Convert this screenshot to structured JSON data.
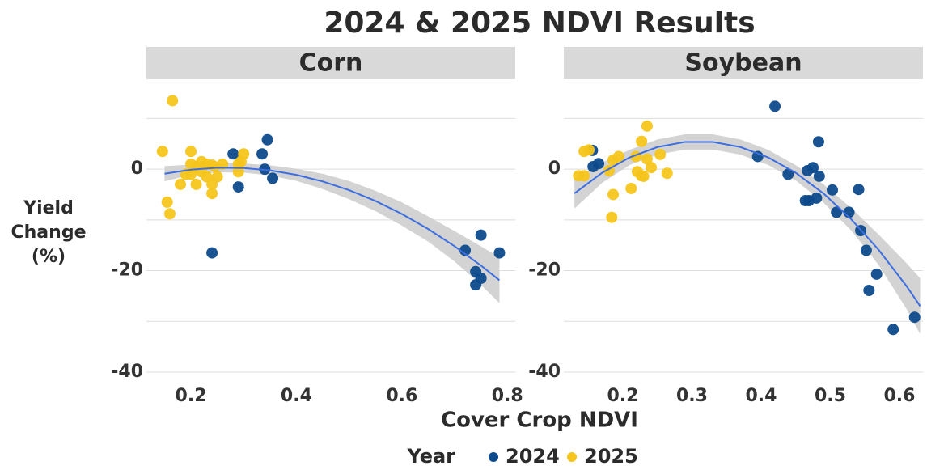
{
  "title": "2024 & 2025 NDVI Results",
  "x_label": "Cover Crop NDVI",
  "y_label": "Yield Change (%)",
  "legend_title": "Year",
  "chart_data": [
    {
      "type": "scatter",
      "title": "Corn",
      "xlim": [
        0.1156,
        0.815
      ],
      "xticks": [
        0.2,
        0.4,
        0.6,
        0.8
      ],
      "ylim": [
        -41.6,
        17.4
      ],
      "yticks": [
        -40,
        -20,
        0
      ],
      "minor_yticks": [
        -30,
        -10,
        10
      ],
      "grid": true,
      "series": [
        {
          "name": "2024",
          "color": "#0d4a8c",
          "x": [
            0.28,
            0.29,
            0.24,
            0.335,
            0.34,
            0.345,
            0.355,
            0.72,
            0.74,
            0.74,
            0.75,
            0.75,
            0.785
          ],
          "values": [
            3,
            -3.5,
            -16.5,
            3,
            0,
            5.8,
            -1.8,
            -16,
            -20.2,
            -22.8,
            -21.5,
            -13,
            -16.5
          ]
        },
        {
          "name": "2025",
          "color": "#f5c51c",
          "x": [
            0.146,
            0.165,
            0.155,
            0.16,
            0.18,
            0.19,
            0.2,
            0.2,
            0.2,
            0.21,
            0.21,
            0.22,
            0.22,
            0.23,
            0.23,
            0.24,
            0.24,
            0.245,
            0.25,
            0.26,
            0.29,
            0.29,
            0.3,
            0.295,
            0.24
          ],
          "values": [
            3.5,
            13.5,
            -6.5,
            -8.8,
            -3,
            -1,
            3.5,
            1,
            -1,
            -3,
            0.5,
            1.5,
            -0.5,
            -1.5,
            1,
            -3,
            -4.8,
            0.5,
            -1.5,
            1,
            1,
            -0.5,
            3,
            1.5,
            0.8
          ]
        }
      ],
      "trend": {
        "color": "#3d6ee0",
        "x": [
          0.15,
          0.2,
          0.25,
          0.3,
          0.35,
          0.4,
          0.45,
          0.5,
          0.55,
          0.6,
          0.65,
          0.7,
          0.75,
          0.785
        ],
        "y": [
          -0.9,
          -0.1,
          0.27,
          0.22,
          -0.24,
          -1.12,
          -2.42,
          -4.13,
          -6.27,
          -8.83,
          -11.8,
          -15.2,
          -19.0,
          -21.9
        ],
        "lower": [
          -2.4,
          -1.1,
          -0.63,
          -0.68,
          -1.24,
          -2.32,
          -3.92,
          -5.93,
          -8.27,
          -11.13,
          -14.3,
          -18.2,
          -22.8,
          -26.4
        ],
        "upper": [
          0.6,
          0.9,
          1.17,
          1.12,
          0.76,
          0.08,
          -0.92,
          -2.33,
          -4.27,
          -6.53,
          -9.3,
          -12.2,
          -15.2,
          -17.4
        ]
      }
    },
    {
      "type": "scatter",
      "title": "Soybean",
      "xlim": [
        0.1146,
        0.634
      ],
      "xticks": [
        0.2,
        0.3,
        0.4,
        0.5,
        0.6
      ],
      "ylim": [
        -41.6,
        17.4
      ],
      "yticks": [
        -40,
        -20,
        0
      ],
      "minor_yticks": [
        -30,
        -10,
        10
      ],
      "grid": true,
      "series": [
        {
          "name": "2024",
          "color": "#0d4a8c",
          "x": [
            0.156,
            0.157,
            0.165,
            0.395,
            0.42,
            0.439,
            0.467,
            0.475,
            0.464,
            0.469,
            0.48,
            0.483,
            0.484,
            0.503,
            0.509,
            0.527,
            0.541,
            0.544,
            0.552,
            0.556,
            0.567,
            0.591,
            0.622
          ],
          "values": [
            3.7,
            0.5,
            1.1,
            2.5,
            12.4,
            -1,
            -0.3,
            0.3,
            -6.2,
            -6.2,
            -5.7,
            5.4,
            -1.4,
            -4.1,
            -8.5,
            -8.5,
            -4,
            -12.1,
            -16,
            -23.9,
            -20.7,
            -31.6,
            -29.2
          ]
        },
        {
          "name": "2025",
          "color": "#f5c51c",
          "x": [
            0.136,
            0.144,
            0.151,
            0.144,
            0.18,
            0.186,
            0.184,
            0.194,
            0.186,
            0.212,
            0.227,
            0.235,
            0.221,
            0.227,
            0.23,
            0.235,
            0.241,
            0.254,
            0.264,
            0.219
          ],
          "values": [
            -1.3,
            3.5,
            3.8,
            -1.3,
            -0.3,
            -5,
            -9.5,
            2.5,
            1.8,
            -3.8,
            5.5,
            8.5,
            -0.5,
            -1.3,
            -1.4,
            2,
            0.3,
            2.9,
            -0.8,
            2.5
          ]
        }
      ],
      "trend": {
        "color": "#3d6ee0",
        "x": [
          0.13,
          0.17,
          0.21,
          0.25,
          0.29,
          0.33,
          0.37,
          0.41,
          0.45,
          0.49,
          0.53,
          0.57,
          0.61,
          0.63
        ],
        "y": [
          -4.77,
          -0.71,
          2.33,
          4.36,
          5.37,
          5.37,
          4.36,
          2.33,
          -0.71,
          -4.77,
          -9.84,
          -15.9,
          -23.0,
          -27.0
        ],
        "lower": [
          -7.77,
          -2.71,
          0.83,
          2.86,
          3.87,
          3.87,
          2.86,
          0.83,
          -2.21,
          -6.57,
          -12.04,
          -18.9,
          -27.5,
          -32.5
        ],
        "upper": [
          -1.77,
          1.29,
          3.83,
          5.86,
          6.87,
          6.87,
          5.86,
          3.83,
          0.79,
          -2.97,
          -7.64,
          -12.9,
          -18.5,
          -21.5
        ]
      }
    }
  ]
}
